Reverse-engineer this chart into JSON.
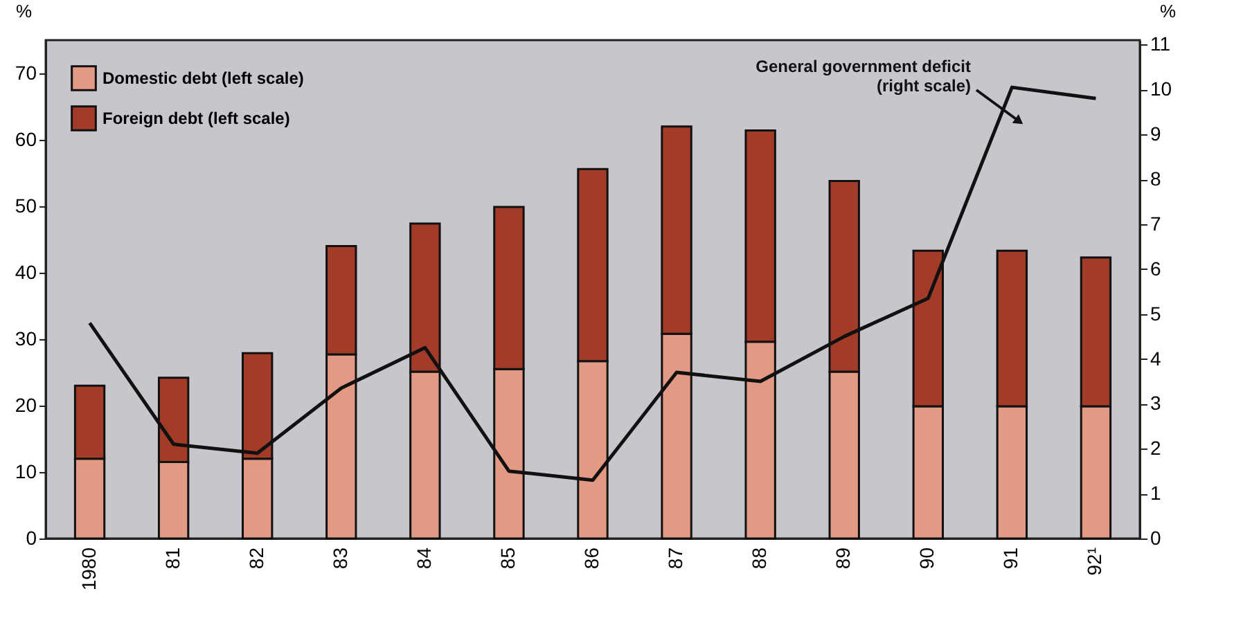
{
  "chart_data": {
    "type": "bar",
    "stacked": true,
    "ylabel": "%",
    "y2label": "%",
    "categories": [
      "1980",
      "81",
      "82",
      "83",
      "84",
      "85",
      "86",
      "87",
      "88",
      "89",
      "90",
      "91",
      "92¹"
    ],
    "series": [
      {
        "name": "Domestic debt (left scale)",
        "color": "#e39a84",
        "values": [
          12,
          11.5,
          12,
          27.7,
          25.1,
          25.5,
          26.7,
          30.8,
          29.6,
          25.1,
          19.9,
          19.9,
          19.9
        ]
      },
      {
        "name": "Foreign debt (left scale)",
        "color": "#a23c28",
        "values": [
          11,
          12.7,
          15.9,
          16.3,
          22.3,
          24.4,
          28.9,
          31.2,
          31.8,
          28.7,
          23.4,
          23.4,
          22.4
        ]
      },
      {
        "name": "General government deficit (right scale)",
        "type": "line",
        "axis": "y2",
        "color": "#111111",
        "values": [
          4.8,
          2.1,
          1.9,
          3.35,
          4.25,
          1.5,
          1.3,
          3.7,
          3.5,
          4.5,
          5.35,
          10.05,
          9.8
        ]
      }
    ],
    "ylim": [
      0,
      75
    ],
    "yticks": [
      0,
      10,
      20,
      30,
      40,
      50,
      60,
      70
    ],
    "y2lim": [
      0,
      11.1
    ],
    "y2ticks": [
      0,
      1,
      2,
      3,
      4,
      5,
      6,
      7,
      8,
      9,
      10,
      11
    ],
    "legend": "top left",
    "grid": false,
    "marker": "none",
    "line_style": "solid"
  }
}
